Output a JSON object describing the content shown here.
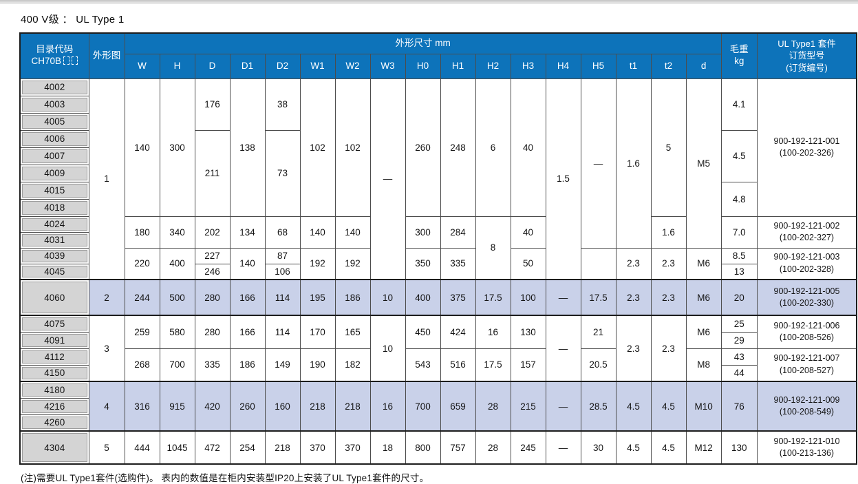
{
  "title": "400 V级 ： UL Type 1",
  "footnote": "(注)需要UL Type1套件(选购件)。 表内的数值是在柜内安装型IP20上安装了UL Type1套件的尺寸。",
  "colors": {
    "header_bg": "#0d73ba",
    "highlight_row_bg": "#c9d1e9",
    "code_cell_bg": "#d4d4d4"
  },
  "table": {
    "header": {
      "catalog_line1": "目录代码",
      "catalog_line2": "CH70B",
      "figure": "外形图",
      "dims_group": "外形尺寸 mm",
      "dim_cols": [
        "W",
        "H",
        "D",
        "D1",
        "D2",
        "W1",
        "W2",
        "W3",
        "H0",
        "H1",
        "H2",
        "H3",
        "H4",
        "H5",
        "t1",
        "t2",
        "d"
      ],
      "weight_line1": "毛重",
      "weight_line2": "kg",
      "order_lines": [
        "UL Type1 套件",
        "订货型号",
        "(订货编号)"
      ]
    },
    "rows": [
      {
        "code": "4002",
        "cells": [
          [
            "1",
            12
          ],
          [
            "140",
            8
          ],
          [
            "300",
            8
          ],
          [
            "176",
            3
          ],
          [
            "138",
            8
          ],
          [
            "38",
            3
          ],
          [
            "102",
            8
          ],
          [
            "102",
            8
          ],
          [
            "—",
            12
          ],
          [
            "260",
            8
          ],
          [
            "248",
            8
          ],
          [
            "6",
            8
          ],
          [
            "40",
            8
          ],
          [
            "1.5",
            12
          ],
          [
            "—",
            10
          ],
          [
            "1.6",
            10
          ],
          [
            "5",
            8
          ],
          [
            "M5",
            10
          ],
          [
            "4.1",
            3
          ],
          [
            [
              "900-192-121-001",
              "(100-202-326)"
            ],
            8
          ]
        ]
      },
      {
        "code": "4003",
        "cells": []
      },
      {
        "code": "4005",
        "cells": []
      },
      {
        "code": "4006",
        "cells": [
          [
            "211",
            5
          ],
          [
            "73",
            5
          ],
          [
            "4.5",
            3
          ]
        ]
      },
      {
        "code": "4007",
        "cells": []
      },
      {
        "code": "4009",
        "cells": []
      },
      {
        "code": "4015",
        "cells": [
          [
            "4.8",
            2
          ]
        ]
      },
      {
        "code": "4018",
        "cells": []
      },
      {
        "code": "4024",
        "cells": [
          [
            "180",
            2
          ],
          [
            "340",
            2
          ],
          [
            "202",
            2
          ],
          [
            "134",
            2
          ],
          [
            "68",
            2
          ],
          [
            "140",
            2
          ],
          [
            "140",
            2
          ],
          [
            "300",
            2
          ],
          [
            "284",
            2
          ],
          [
            "8",
            4
          ],
          [
            "40",
            2
          ],
          [
            "1.6",
            2
          ],
          [
            "7.0",
            2
          ],
          [
            [
              "900-192-121-002",
              "(100-202-327)"
            ],
            2
          ]
        ]
      },
      {
        "code": "4031",
        "cells": []
      },
      {
        "code": "4039",
        "cells": [
          [
            "220",
            2
          ],
          [
            "400",
            2
          ],
          [
            "227",
            1
          ],
          [
            "140",
            2
          ],
          [
            "87",
            1
          ],
          [
            "192",
            2
          ],
          [
            "192",
            2
          ],
          [
            "350",
            2
          ],
          [
            "335",
            2
          ],
          [
            "50",
            2
          ],
          [
            "",
            2
          ],
          [
            "2.3",
            2
          ],
          [
            "2.3",
            2
          ],
          [
            "M6",
            2
          ],
          [
            "8.5",
            1
          ],
          [
            [
              "900-192-121-003",
              "(100-202-328)"
            ],
            2
          ]
        ]
      },
      {
        "code": "4045",
        "cells": [
          [
            "246",
            1
          ],
          [
            "106",
            1
          ],
          [
            "13",
            1
          ]
        ]
      },
      {
        "code": "4060",
        "highlight": true,
        "cells": [
          [
            "2",
            1
          ],
          [
            "244",
            1
          ],
          [
            "500",
            1
          ],
          [
            "280",
            1
          ],
          [
            "166",
            1
          ],
          [
            "114",
            1
          ],
          [
            "195",
            1
          ],
          [
            "186",
            1
          ],
          [
            "10",
            1
          ],
          [
            "400",
            1
          ],
          [
            "375",
            1
          ],
          [
            "17.5",
            1
          ],
          [
            "100",
            1
          ],
          [
            "—",
            1
          ],
          [
            "17.5",
            1
          ],
          [
            "2.3",
            1
          ],
          [
            "2.3",
            1
          ],
          [
            "M6",
            1
          ],
          [
            "20",
            1
          ],
          [
            [
              "900-192-121-005",
              "(100-202-330)"
            ],
            1
          ]
        ]
      },
      {
        "code": "4075",
        "cells": [
          [
            "3",
            4
          ],
          [
            "259",
            2
          ],
          [
            "580",
            2
          ],
          [
            "280",
            2
          ],
          [
            "166",
            2
          ],
          [
            "114",
            2
          ],
          [
            "170",
            2
          ],
          [
            "165",
            2
          ],
          [
            "10",
            4
          ],
          [
            "450",
            2
          ],
          [
            "424",
            2
          ],
          [
            "16",
            2
          ],
          [
            "130",
            2
          ],
          [
            "—",
            4
          ],
          [
            "21",
            2
          ],
          [
            "2.3",
            4
          ],
          [
            "2.3",
            4
          ],
          [
            "M6",
            2
          ],
          [
            "25",
            1
          ],
          [
            [
              "900-192-121-006",
              "(100-208-526)"
            ],
            2
          ]
        ]
      },
      {
        "code": "4091",
        "cells": [
          [
            "29",
            1
          ]
        ]
      },
      {
        "code": "4112",
        "cells": [
          [
            "268",
            2
          ],
          [
            "700",
            2
          ],
          [
            "335",
            2
          ],
          [
            "186",
            2
          ],
          [
            "149",
            2
          ],
          [
            "190",
            2
          ],
          [
            "182",
            2
          ],
          [
            "543",
            2
          ],
          [
            "516",
            2
          ],
          [
            "17.5",
            2
          ],
          [
            "157",
            2
          ],
          [
            "20.5",
            2
          ],
          [
            "M8",
            2
          ],
          [
            "43",
            1
          ],
          [
            [
              "900-192-121-007",
              "(100-208-527)"
            ],
            2
          ]
        ]
      },
      {
        "code": "4150",
        "cells": [
          [
            "44",
            1
          ]
        ]
      },
      {
        "code": "4180",
        "highlight": true,
        "cells": [
          [
            "4",
            3
          ],
          [
            "316",
            3
          ],
          [
            "915",
            3
          ],
          [
            "420",
            3
          ],
          [
            "260",
            3
          ],
          [
            "160",
            3
          ],
          [
            "218",
            3
          ],
          [
            "218",
            3
          ],
          [
            "16",
            3
          ],
          [
            "700",
            3
          ],
          [
            "659",
            3
          ],
          [
            "28",
            3
          ],
          [
            "215",
            3
          ],
          [
            "—",
            3
          ],
          [
            "28.5",
            3
          ],
          [
            "4.5",
            3
          ],
          [
            "4.5",
            3
          ],
          [
            "M10",
            3
          ],
          [
            "76",
            3
          ],
          [
            [
              "900-192-121-009",
              "(100-208-549)"
            ],
            3
          ]
        ]
      },
      {
        "code": "4216",
        "highlight": true,
        "cells": []
      },
      {
        "code": "4260",
        "highlight": true,
        "cells": []
      },
      {
        "code": "4304",
        "cells": [
          [
            "5",
            1
          ],
          [
            "444",
            1
          ],
          [
            "1045",
            1
          ],
          [
            "472",
            1
          ],
          [
            "254",
            1
          ],
          [
            "218",
            1
          ],
          [
            "370",
            1
          ],
          [
            "370",
            1
          ],
          [
            "18",
            1
          ],
          [
            "800",
            1
          ],
          [
            "757",
            1
          ],
          [
            "28",
            1
          ],
          [
            "245",
            1
          ],
          [
            "—",
            1
          ],
          [
            "30",
            1
          ],
          [
            "4.5",
            1
          ],
          [
            "4.5",
            1
          ],
          [
            "M12",
            1
          ],
          [
            "130",
            1
          ],
          [
            [
              "900-192-121-010",
              "(100-213-136)"
            ],
            1
          ]
        ]
      }
    ]
  }
}
